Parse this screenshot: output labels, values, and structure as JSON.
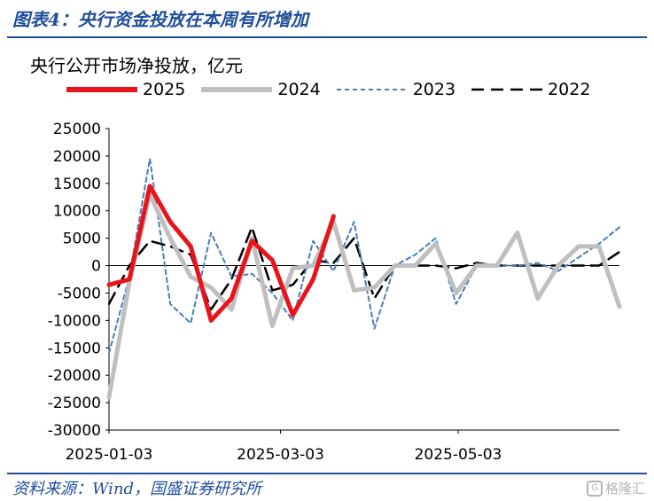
{
  "header": {
    "title": "图表4：央行资金投放在本周有所增加"
  },
  "footer": {
    "source": "资料来源：Wind，国盛证券研究所",
    "watermark": "格隆汇"
  },
  "colors": {
    "accent": "#1f4e9a",
    "s2025": "#e8141b",
    "s2024": "#bfbfbf",
    "s2023": "#4a7ebb",
    "s2022": "#000000"
  },
  "chart_data": {
    "type": "line",
    "title": "",
    "unit_label": "央行公开市场净投放，亿元",
    "xlabel": "",
    "ylabel": "",
    "ylim": [
      -30000,
      25000
    ],
    "y_ticks": [
      25000,
      20000,
      15000,
      10000,
      5000,
      0,
      -5000,
      -10000,
      -15000,
      -20000,
      -25000,
      -30000
    ],
    "x_ticks": [
      "2025-01-03",
      "2025-03-03",
      "2025-05-03"
    ],
    "x_tick_index": [
      0,
      8.4,
      17.1
    ],
    "legend_position": "top",
    "series": [
      {
        "name": "2025",
        "style": "thick-solid",
        "values": [
          -3500,
          -2500,
          14500,
          8000,
          3500,
          -10000,
          -6000,
          4500,
          1000,
          -9000,
          -2500,
          9000
        ]
      },
      {
        "name": "2024",
        "style": "thick-solid",
        "values": [
          -24000,
          -3000,
          13000,
          5000,
          -2000,
          -4000,
          -8000,
          5000,
          -11000,
          -500,
          0,
          8000,
          -4500,
          -4000,
          0,
          0,
          4000,
          -5000,
          0,
          0,
          6000,
          -6000,
          0,
          3500,
          3500,
          -7500
        ]
      },
      {
        "name": "2023",
        "style": "dashed",
        "values": [
          -16000,
          -2000,
          19500,
          -7000,
          -10500,
          6000,
          -2000,
          -1500,
          -5000,
          -10000,
          4500,
          -1000,
          8000,
          -11500,
          0,
          2000,
          5000,
          -7000,
          0,
          0,
          0,
          500,
          -1000,
          1500,
          4000,
          7000
        ]
      },
      {
        "name": "2022",
        "style": "long-dash",
        "values": [
          -7000,
          0,
          4500,
          3500,
          2000,
          -8000,
          -2500,
          7000,
          -4500,
          -3500,
          1000,
          500,
          5000,
          -6000,
          0,
          0,
          0,
          -500,
          500,
          0,
          0,
          0,
          0,
          0,
          0,
          2500
        ]
      }
    ]
  }
}
